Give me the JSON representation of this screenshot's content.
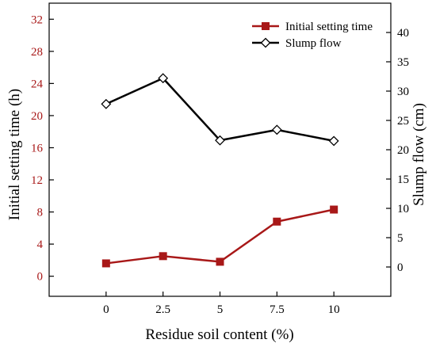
{
  "chart_data": {
    "type": "line",
    "x": [
      0,
      2.5,
      5,
      7.5,
      10
    ],
    "x_ticks": [
      "0",
      "2.5",
      "5",
      "7.5",
      "10"
    ],
    "xlim": [
      -2.5,
      12.5
    ],
    "xlabel": "Residue soil content (%)",
    "left_axis": {
      "label": "Initial setting time (h)",
      "ylim": [
        -2.5,
        34
      ],
      "ticks": [
        "0",
        "4",
        "8",
        "12",
        "16",
        "20",
        "24",
        "28",
        "32"
      ],
      "tick_values": [
        0,
        4,
        8,
        12,
        16,
        20,
        24,
        28,
        32
      ],
      "color": "#a81818"
    },
    "right_axis": {
      "label": "Slump flow (cm)",
      "ylim": [
        -5,
        45
      ],
      "ticks": [
        "0",
        "5",
        "10",
        "15",
        "20",
        "25",
        "30",
        "35",
        "40"
      ],
      "tick_values": [
        0,
        5,
        10,
        15,
        20,
        25,
        30,
        35,
        40
      ],
      "color": "#000000"
    },
    "series": [
      {
        "name": "Initial setting time",
        "axis": "left",
        "values": [
          1.6,
          2.5,
          1.8,
          6.8,
          8.3
        ],
        "color": "#a81818",
        "marker": "square"
      },
      {
        "name": "Slump flow",
        "axis": "right",
        "values": [
          27.8,
          32.2,
          21.6,
          23.4,
          21.5
        ],
        "color": "#000000",
        "marker": "diamond-open"
      }
    ],
    "legend_position": "top-right",
    "grid": false
  }
}
